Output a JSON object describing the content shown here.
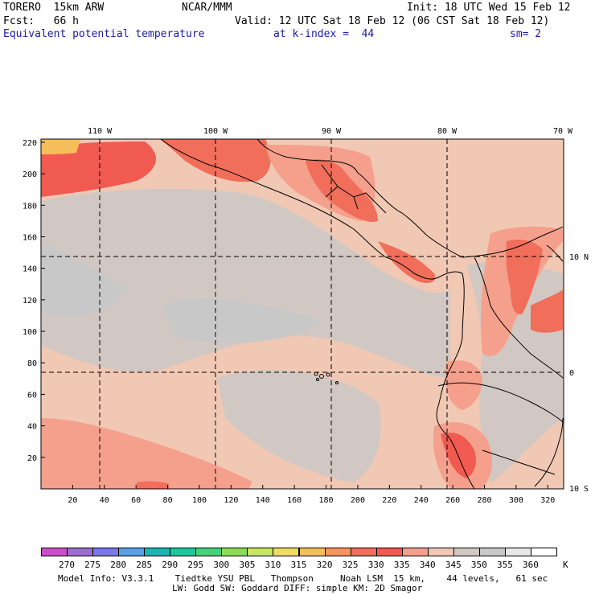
{
  "header": {
    "model": "TORERO  15km ARW",
    "org": "NCAR/MMM",
    "init": "Init: 18 UTC Wed 15 Feb 12",
    "fcst": "Fcst:   66 h",
    "valid": "Valid: 12 UTC Sat 18 Feb 12 (06 CST Sat 18 Feb 12)",
    "field": "Equivalent potential temperature",
    "level": "at k-index =  44",
    "smooth": "sm= 2"
  },
  "map": {
    "top_lon_labels": [
      "110 W",
      "100 W",
      "90 W",
      "80 W",
      "70 W"
    ],
    "right_lat_labels": [
      "10 N",
      "0",
      "10 S"
    ],
    "y_ticks": [
      "220",
      "200",
      "180",
      "160",
      "140",
      "120",
      "100",
      "80",
      "60",
      "40",
      "20"
    ],
    "x_ticks": [
      "20",
      "40",
      "60",
      "80",
      "100",
      "120",
      "140",
      "160",
      "180",
      "200",
      "220",
      "240",
      "260",
      "280",
      "300",
      "320"
    ]
  },
  "colorbar": {
    "unit": "K",
    "labels": [
      "270",
      "275",
      "280",
      "285",
      "290",
      "295",
      "300",
      "305",
      "310",
      "315",
      "320",
      "325",
      "330",
      "335",
      "340",
      "345",
      "350",
      "355",
      "360"
    ],
    "colors": [
      "#c850c8",
      "#9b6ecf",
      "#7a78e6",
      "#5aa0e6",
      "#1fb4b4",
      "#1fc89b",
      "#46d278",
      "#8cdc5a",
      "#c8e664",
      "#f0dc64",
      "#f5be5a",
      "#f5965f",
      "#f06e5a",
      "#f05a50",
      "#f5a08c",
      "#f0c8b4",
      "#d2c8c3",
      "#c8c8c8",
      "#e8e8e8",
      "#ffffff"
    ]
  },
  "footer": {
    "line1": "Model Info: V3.3.1    Tiedtke YSU PBL   Thompson     Noah LSM  15 km,    44 levels,   61 sec",
    "line2": "LW: Godd SW: Goddard DIFF: simple KM: 2D Smagor"
  }
}
